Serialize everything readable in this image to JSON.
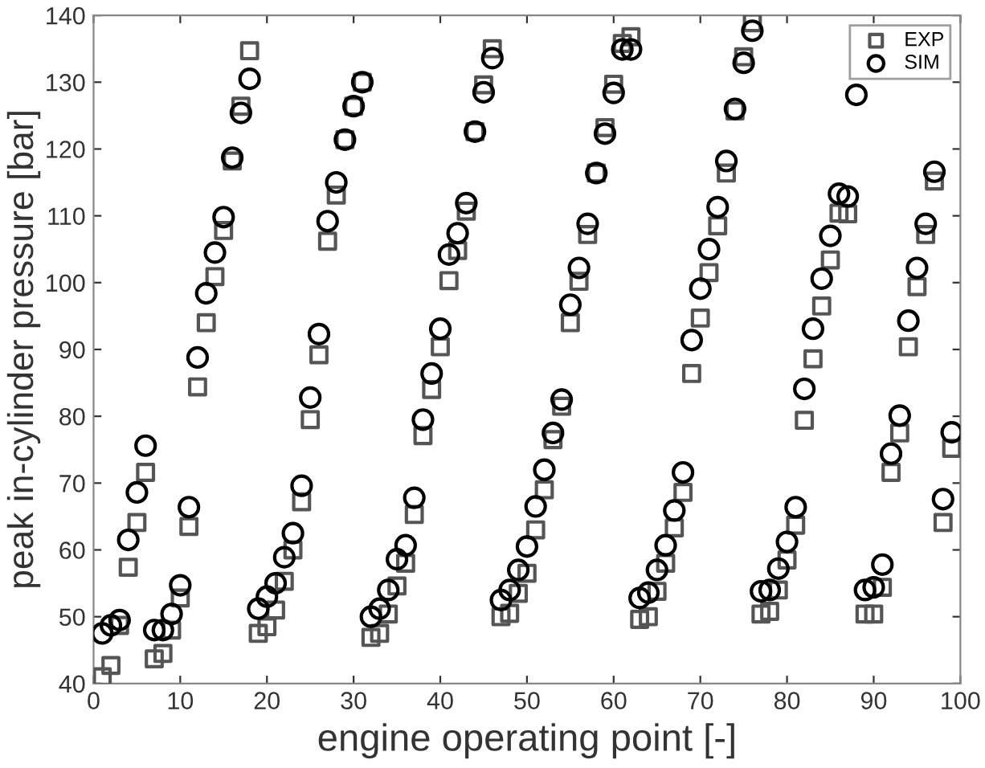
{
  "chart_data": {
    "type": "scatter",
    "xlabel": "engine operating point [-]",
    "ylabel": "peak in-cylinder pressure [bar]",
    "x": [
      1,
      2,
      3,
      4,
      5,
      6,
      7,
      8,
      9,
      10,
      11,
      12,
      13,
      14,
      15,
      16,
      17,
      18,
      19,
      20,
      21,
      22,
      23,
      24,
      25,
      26,
      27,
      28,
      29,
      30,
      31,
      32,
      33,
      34,
      35,
      36,
      37,
      38,
      39,
      40,
      41,
      42,
      43,
      44,
      45,
      46,
      47,
      48,
      49,
      50,
      51,
      52,
      53,
      54,
      55,
      56,
      57,
      58,
      59,
      60,
      61,
      62,
      63,
      64,
      65,
      66,
      67,
      68,
      69,
      70,
      71,
      72,
      73,
      74,
      75,
      76,
      77,
      78,
      79,
      80,
      81,
      82,
      83,
      84,
      85,
      86,
      87,
      88,
      89,
      90,
      91,
      92,
      93,
      94,
      95,
      96,
      97,
      98,
      99
    ],
    "series": [
      {
        "name": "EXP",
        "color": "#555555",
        "marker": "square",
        "values": [
          41,
          42.7,
          48.7,
          57.4,
          64.1,
          71.6,
          43.7,
          44.5,
          48,
          52.8,
          63.5,
          84.4,
          94,
          100.9,
          107.8,
          118.2,
          126.4,
          134.7,
          47.5,
          48.5,
          51,
          55.3,
          60,
          67.2,
          79.5,
          89.2,
          106.2,
          113.1,
          121.4,
          126.4,
          130,
          46.9,
          47.5,
          50.4,
          54.6,
          58,
          65.3,
          77.1,
          84,
          90.4,
          100.3,
          104.8,
          110.7,
          122.6,
          129.6,
          135,
          50,
          50.5,
          53.5,
          56.5,
          63,
          69,
          76.5,
          81.5,
          94,
          100.2,
          107.2,
          116.4,
          123.2,
          129.7,
          135.8,
          136.8,
          49.6,
          50,
          53.8,
          58,
          63.3,
          68.6,
          86.4,
          94.7,
          101.5,
          108.5,
          116.4,
          125.7,
          133.8,
          138.9,
          50.4,
          50.8,
          54,
          58.5,
          63.7,
          79.4,
          88.6,
          96.5,
          103.4,
          110.4,
          110.3,
          null,
          50.4,
          50.4,
          54.4,
          71.6,
          77.5,
          90.4,
          99.4,
          107.2,
          115.2,
          64.1,
          75.2
        ]
      },
      {
        "name": "SIM",
        "color": "#000000",
        "marker": "circle",
        "values": [
          47.5,
          48.7,
          49.5,
          61.5,
          68.6,
          75.6,
          48,
          48,
          50.4,
          54.7,
          66.4,
          88.8,
          98.4,
          104.5,
          109.8,
          118.7,
          125.4,
          130.5,
          51.2,
          53,
          55,
          58.9,
          62.5,
          69.6,
          82.8,
          92.3,
          109.2,
          115,
          121.4,
          126.4,
          130,
          50,
          51.2,
          54,
          58.6,
          60.7,
          67.8,
          79.5,
          86.4,
          93.1,
          104.2,
          107.4,
          111.9,
          122.6,
          128.5,
          133.6,
          52.5,
          54,
          57,
          60.5,
          66.5,
          72,
          77.5,
          82.5,
          96.7,
          102.2,
          108.8,
          116.4,
          122.3,
          128.4,
          134.9,
          134.9,
          52.8,
          53.6,
          57,
          60.7,
          65.9,
          71.6,
          91.4,
          99.1,
          105,
          111.3,
          118.2,
          126,
          132.9,
          137.7,
          53.8,
          54,
          57.2,
          61.2,
          66.4,
          84.1,
          93.1,
          100.6,
          107,
          113.3,
          112.9,
          128.1,
          54,
          54.4,
          57.8,
          74.4,
          80.1,
          94.3,
          102.2,
          108.8,
          116.6,
          67.6,
          77.6
        ]
      }
    ],
    "xlim": [
      0,
      100
    ],
    "xticks": [
      0,
      10,
      20,
      30,
      40,
      50,
      60,
      70,
      80,
      90,
      100
    ],
    "ylim": [
      40,
      140
    ],
    "yticks": [
      40,
      50,
      60,
      70,
      80,
      90,
      100,
      110,
      120,
      130,
      140
    ],
    "grid": false,
    "legend": "top right"
  }
}
